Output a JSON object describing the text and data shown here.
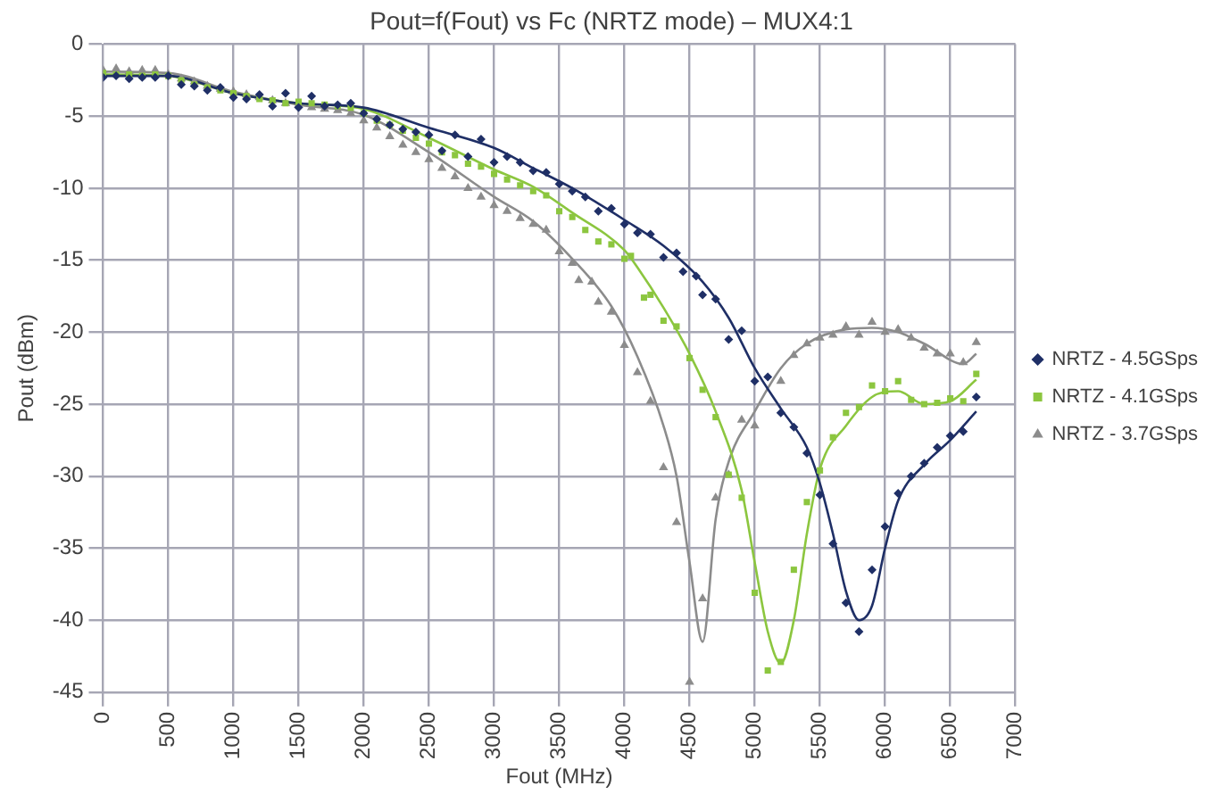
{
  "chart_data": {
    "type": "scatter",
    "title": "Pout=f(Fout) vs Fc (NRTZ mode) – MUX4:1",
    "xlabel": "Fout (MHz)",
    "ylabel": "Pout (dBm)",
    "xlim": [
      0,
      7000
    ],
    "xticks": [
      0,
      500,
      1000,
      1500,
      2000,
      2500,
      3000,
      3500,
      4000,
      4500,
      5000,
      5500,
      6000,
      6500,
      7000
    ],
    "ylim": [
      -45,
      0
    ],
    "yticks": [
      -45,
      -40,
      -35,
      -30,
      -25,
      -20,
      -15,
      -10,
      -5,
      0
    ],
    "grid": true,
    "legend": "right",
    "series": [
      {
        "name": "NRTZ - 4.5GSps",
        "type": "scatter",
        "marker": "diamond",
        "color": "#1f2f66",
        "x": [
          0,
          100,
          200,
          300,
          400,
          500,
          600,
          700,
          800,
          900,
          1000,
          1100,
          1200,
          1300,
          1400,
          1500,
          1600,
          1700,
          1800,
          1900,
          2000,
          2100,
          2200,
          2300,
          2400,
          2500,
          2600,
          2700,
          2800,
          2900,
          3000,
          3100,
          3200,
          3300,
          3400,
          3500,
          3600,
          3700,
          3800,
          3900,
          4000,
          4100,
          4200,
          4300,
          4400,
          4450,
          4550,
          4600,
          4700,
          4800,
          4900,
          5000,
          5100,
          5200,
          5300,
          5400,
          5500,
          5600,
          5700,
          5800,
          5900,
          6000,
          6100,
          6200,
          6300,
          6400,
          6500,
          6600,
          6700
        ],
        "values": [
          -2.3,
          -2.2,
          -2.4,
          -2.3,
          -2.3,
          -2.2,
          -2.8,
          -2.9,
          -3.2,
          -3.0,
          -3.7,
          -3.8,
          -3.5,
          -4.3,
          -3.4,
          -4.4,
          -3.6,
          -4.3,
          -4.2,
          -4.1,
          -4.8,
          -5.2,
          -5.6,
          -5.9,
          -6.1,
          -6.3,
          -7.4,
          -6.3,
          -7.8,
          -6.6,
          -8.2,
          -7.8,
          -8.2,
          -8.8,
          -8.9,
          -9.7,
          -10.2,
          -10.6,
          -11.6,
          -11.4,
          -12.5,
          -13.1,
          -13.2,
          -14.8,
          -14.5,
          -15.8,
          -16.1,
          -17.4,
          -17.7,
          -20.5,
          -19.9,
          -23.4,
          -23.1,
          -25.6,
          -26.6,
          -28.4,
          -31.3,
          -34.7,
          -38.8,
          -40.8,
          -36.5,
          -33.5,
          -31.2,
          -30.0,
          -29.1,
          -28.0,
          -27.2,
          -26.9,
          -24.5
        ]
      },
      {
        "name": "NRTZ - 4.1GSps",
        "type": "scatter",
        "marker": "square",
        "color": "#8cc63f",
        "x": [
          0,
          100,
          200,
          300,
          400,
          500,
          600,
          700,
          800,
          900,
          1000,
          1100,
          1200,
          1300,
          1400,
          1500,
          1600,
          1700,
          1800,
          1900,
          2000,
          2100,
          2200,
          2300,
          2400,
          2500,
          2600,
          2700,
          2800,
          2900,
          3000,
          3100,
          3200,
          3300,
          3400,
          3500,
          3600,
          3700,
          3800,
          3900,
          4000,
          4050,
          4150,
          4200,
          4300,
          4400,
          4500,
          4600,
          4700,
          4800,
          4900,
          5000,
          5100,
          5200,
          5300,
          5400,
          5500,
          5600,
          5700,
          5800,
          5900,
          6000,
          6100,
          6200,
          6300,
          6400,
          6500,
          6600,
          6700
        ],
        "values": [
          -2.0,
          -2.1,
          -2.1,
          -2.2,
          -2.1,
          -2.2,
          -2.5,
          -2.8,
          -3.0,
          -3.2,
          -3.4,
          -3.6,
          -3.8,
          -3.9,
          -4.1,
          -4.0,
          -4.1,
          -4.2,
          -4.3,
          -4.4,
          -4.8,
          -5.3,
          -5.6,
          -6.0,
          -6.5,
          -6.9,
          -7.5,
          -7.7,
          -8.3,
          -8.5,
          -9.0,
          -9.4,
          -9.8,
          -10.2,
          -10.5,
          -11.6,
          -12.0,
          -12.9,
          -13.7,
          -13.9,
          -14.9,
          -14.7,
          -17.6,
          -17.4,
          -19.2,
          -19.6,
          -21.8,
          -24.0,
          -25.9,
          -29.9,
          -31.5,
          -38.1,
          -43.5,
          -42.9,
          -36.5,
          -31.8,
          -29.6,
          -27.3,
          -25.6,
          -25.2,
          -23.7,
          -24.1,
          -23.4,
          -24.7,
          -25.0,
          -24.9,
          -24.6,
          -24.8,
          -22.9
        ]
      },
      {
        "name": "NRTZ - 3.7GSps",
        "type": "scatter",
        "marker": "triangle",
        "color": "#8c8c8c",
        "x": [
          0,
          100,
          200,
          300,
          400,
          500,
          600,
          700,
          800,
          900,
          1000,
          1100,
          1200,
          1300,
          1400,
          1500,
          1600,
          1700,
          1800,
          1900,
          2000,
          2100,
          2200,
          2300,
          2400,
          2500,
          2600,
          2700,
          2800,
          2900,
          3000,
          3100,
          3200,
          3300,
          3400,
          3500,
          3600,
          3650,
          3750,
          3800,
          3900,
          4000,
          4100,
          4200,
          4300,
          4400,
          4500,
          4600,
          4700,
          4800,
          4900,
          5000,
          5200,
          5300,
          5400,
          5500,
          5600,
          5700,
          5800,
          5900,
          6000,
          6100,
          6200,
          6300,
          6400,
          6500,
          6600,
          6700
        ],
        "values": [
          -1.8,
          -1.7,
          -1.9,
          -1.8,
          -1.8,
          -2.1,
          -2.4,
          -2.6,
          -2.9,
          -3.1,
          -3.3,
          -3.5,
          -3.7,
          -3.9,
          -4.1,
          -4.2,
          -4.4,
          -4.5,
          -4.6,
          -4.8,
          -5.3,
          -5.8,
          -6.4,
          -7.0,
          -7.5,
          -8.0,
          -8.6,
          -9.2,
          -10.0,
          -10.6,
          -11.2,
          -11.6,
          -12.1,
          -12.5,
          -12.9,
          -14.4,
          -15.2,
          -16.4,
          -16.5,
          -17.9,
          -18.6,
          -20.9,
          -22.8,
          -24.8,
          -29.4,
          -33.2,
          -44.3,
          -38.5,
          -31.5,
          -29.9,
          -26.1,
          -26.5,
          -23.4,
          -21.6,
          -20.8,
          -20.4,
          -20.2,
          -19.6,
          -20.2,
          -19.3,
          -20.0,
          -19.8,
          -20.4,
          -21.1,
          -21.5,
          -21.5,
          -22.1,
          -20.7
        ]
      },
      {
        "type": "line",
        "marker": "none",
        "color": "#1f2f66",
        "x": [
          0,
          500,
          1000,
          1500,
          2000,
          2500,
          3000,
          3300,
          3600,
          4000,
          4300,
          4600,
          4800,
          5000,
          5200,
          5400,
          5500,
          5600,
          5700,
          5800,
          5900,
          6000,
          6100,
          6300,
          6500,
          6700
        ],
        "values": [
          -2.2,
          -2.2,
          -3.4,
          -4.1,
          -4.4,
          -5.8,
          -7.2,
          -8.6,
          -10.0,
          -12.2,
          -14.0,
          -16.5,
          -19.0,
          -22.5,
          -25.3,
          -28.0,
          -30.5,
          -34.0,
          -38.0,
          -40.0,
          -39.0,
          -35.0,
          -31.7,
          -29.2,
          -27.5,
          -25.5
        ]
      },
      {
        "type": "line",
        "marker": "none",
        "color": "#8cc63f",
        "x": [
          0,
          500,
          1000,
          1500,
          2000,
          2500,
          3000,
          3300,
          3600,
          4000,
          4100,
          4300,
          4500,
          4700,
          4900,
          5000,
          5100,
          5200,
          5300,
          5400,
          5500,
          5700,
          5900,
          6100,
          6300,
          6500,
          6700
        ],
        "values": [
          -2.1,
          -2.2,
          -3.4,
          -4.1,
          -4.5,
          -6.5,
          -8.7,
          -9.9,
          -11.7,
          -14.3,
          -15.5,
          -18.3,
          -21.5,
          -25.5,
          -31.0,
          -36.0,
          -40.8,
          -43.0,
          -40.0,
          -34.0,
          -29.5,
          -26.5,
          -24.5,
          -24.1,
          -25.0,
          -24.8,
          -23.3
        ]
      },
      {
        "type": "line",
        "marker": "none",
        "color": "#8c8c8c",
        "x": [
          0,
          500,
          1000,
          1500,
          2000,
          2500,
          3000,
          3300,
          3600,
          3900,
          4100,
          4300,
          4400,
          4500,
          4600,
          4700,
          4800,
          5000,
          5200,
          5400,
          5700,
          5900,
          6100,
          6300,
          6600,
          6700
        ],
        "values": [
          -1.9,
          -2.0,
          -3.3,
          -4.2,
          -4.9,
          -7.5,
          -10.6,
          -12.3,
          -14.9,
          -18.2,
          -21.7,
          -26.5,
          -30.0,
          -36.0,
          -41.5,
          -33.0,
          -29.0,
          -25.5,
          -22.5,
          -20.8,
          -19.8,
          -19.7,
          -20.0,
          -20.8,
          -22.2,
          -21.5
        ]
      }
    ]
  }
}
